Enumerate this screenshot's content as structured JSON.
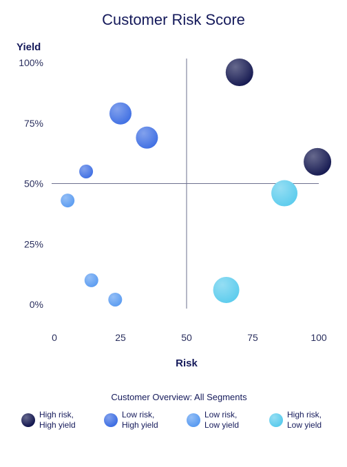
{
  "chart_data": {
    "type": "scatter",
    "title": "Customer Risk Score",
    "xlabel": "Risk",
    "ylabel": "Yield",
    "xlim": [
      0,
      100
    ],
    "ylim": [
      0,
      100
    ],
    "x_ticks": [
      "0",
      "25",
      "50",
      "75",
      "100"
    ],
    "y_ticks": [
      "0%",
      "25%",
      "50%",
      "75%",
      "100%"
    ],
    "grid": false,
    "reference_lines": {
      "x": 50,
      "y": 50
    },
    "legend_title": "Customer Overview: All Segments",
    "legend_position": "bottom",
    "series": [
      {
        "name": "High risk,\nHigh yield",
        "color": "#141850",
        "points": [
          {
            "x": 70,
            "y": 96,
            "size": 20
          },
          {
            "x": 99.5,
            "y": 59,
            "size": 20
          }
        ]
      },
      {
        "name": "Low risk,\nHigh yield",
        "color": "#3f6fe3",
        "points": [
          {
            "x": 25,
            "y": 79,
            "size": 16
          },
          {
            "x": 35,
            "y": 69,
            "size": 16
          },
          {
            "x": 12,
            "y": 55,
            "size": 10
          }
        ]
      },
      {
        "name": "Low risk,\nLow yield",
        "color": "#5b9cf1",
        "points": [
          {
            "x": 5,
            "y": 43,
            "size": 10
          },
          {
            "x": 14,
            "y": 10,
            "size": 10
          },
          {
            "x": 23,
            "y": 2,
            "size": 10
          }
        ]
      },
      {
        "name": "High risk,\nLow yield",
        "color": "#5ccced",
        "points": [
          {
            "x": 87,
            "y": 46,
            "size": 19
          },
          {
            "x": 65,
            "y": 6,
            "size": 19
          }
        ]
      }
    ]
  }
}
